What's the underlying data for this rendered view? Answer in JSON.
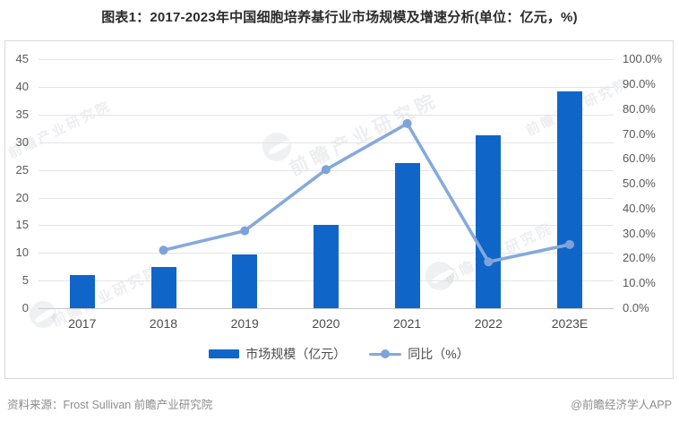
{
  "title": "图表1：2017-2023年中国细胞培养基行业市场规模及增速分析(单位：亿元，%)",
  "chart_data": {
    "type": "bar",
    "subtype": "bar-line-combo",
    "title": "图表1：2017-2023年中国细胞培养基行业市场规模及增速分析(单位：亿元，%)",
    "categories": [
      "2017",
      "2018",
      "2019",
      "2020",
      "2021",
      "2022",
      "2023E"
    ],
    "series": [
      {
        "name": "市场规模（亿元）",
        "kind": "bar",
        "axis": "left",
        "color": "#1066c8",
        "values": [
          6.0,
          7.4,
          9.7,
          15.1,
          26.3,
          31.2,
          39.2
        ]
      },
      {
        "name": "同比（%）",
        "kind": "line",
        "axis": "right",
        "color": "#85a9dc",
        "marker_color": "#7da3d8",
        "values": [
          null,
          23.3,
          31.1,
          55.7,
          74.2,
          18.6,
          25.6
        ]
      }
    ],
    "left_axis": {
      "min": 0,
      "max": 45,
      "step": 5,
      "ticks": [
        "45",
        "40",
        "35",
        "30",
        "25",
        "20",
        "15",
        "10",
        "5",
        "0"
      ]
    },
    "right_axis": {
      "min": 0,
      "max": 100,
      "step": 10,
      "ticks": [
        "100.0%",
        "90.0%",
        "80.0%",
        "70.0%",
        "60.0%",
        "50.0%",
        "40.0%",
        "30.0%",
        "20.0%",
        "10.0%",
        "0.0%"
      ]
    },
    "grid": true,
    "legend_position": "bottom"
  },
  "footer": {
    "source": "资料来源：Frost Sullivan 前瞻产业研究院",
    "credit": "@前瞻经济学人APP"
  },
  "watermark": {
    "text": "前瞻产业研究院"
  }
}
